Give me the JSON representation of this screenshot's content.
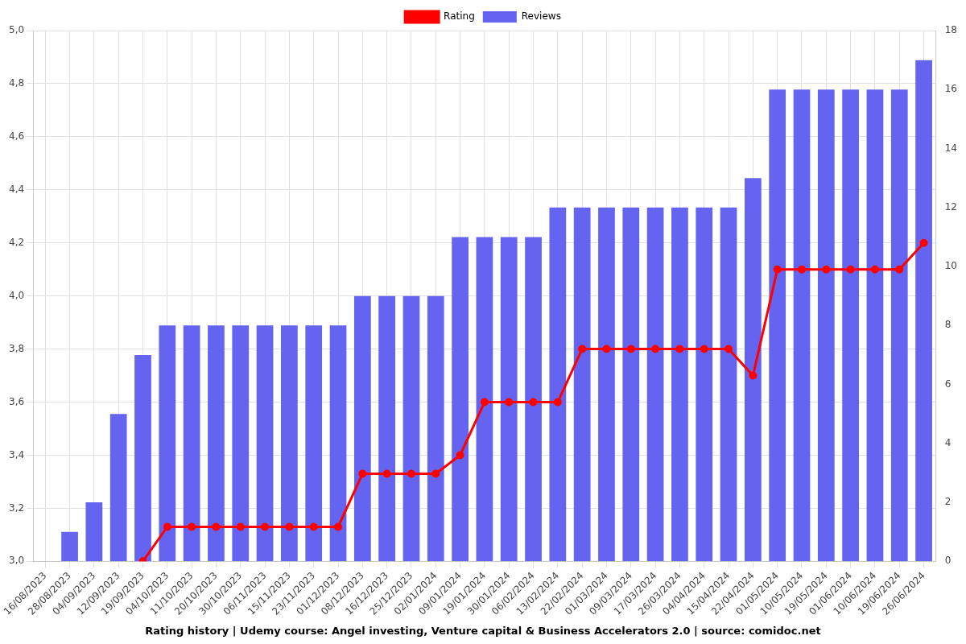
{
  "chart_data": {
    "type": "bar",
    "title": "Rating history | Udemy course: Angel investing, Venture capital & Business Accelerators 2.0 | source: comidoc.net",
    "categories": [
      "16/08/2023",
      "28/08/2023",
      "04/09/2023",
      "12/09/2023",
      "19/09/2023",
      "04/10/2023",
      "11/10/2023",
      "20/10/2023",
      "30/10/2023",
      "06/11/2023",
      "15/11/2023",
      "23/11/2023",
      "01/12/2023",
      "08/12/2023",
      "16/12/2023",
      "25/12/2023",
      "02/01/2024",
      "09/01/2024",
      "19/01/2024",
      "30/01/2024",
      "06/02/2024",
      "13/02/2024",
      "22/02/2024",
      "01/03/2024",
      "09/03/2024",
      "17/03/2024",
      "26/03/2024",
      "04/04/2024",
      "15/04/2024",
      "22/04/2024",
      "01/05/2024",
      "10/05/2024",
      "19/05/2024",
      "01/06/2024",
      "10/06/2024",
      "19/06/2024",
      "26/06/2024"
    ],
    "series": [
      {
        "name": "Rating",
        "type": "line",
        "color": "#ff0000",
        "marker": "circle",
        "values": [
          null,
          null,
          null,
          null,
          3.0,
          3.13,
          3.13,
          3.13,
          3.13,
          3.13,
          3.13,
          3.13,
          3.13,
          3.33,
          3.33,
          3.33,
          3.33,
          3.4,
          3.6,
          3.6,
          3.6,
          3.6,
          3.8,
          3.8,
          3.8,
          3.8,
          3.8,
          3.8,
          3.8,
          3.7,
          4.1,
          4.1,
          4.1,
          4.1,
          4.1,
          4.1,
          4.2
        ]
      },
      {
        "name": "Reviews",
        "type": "bar",
        "color": "#6464f0",
        "axis": "y2",
        "values": [
          null,
          1,
          2,
          5,
          7,
          8,
          8,
          8,
          8,
          8,
          8,
          8,
          8,
          9,
          9,
          9,
          9,
          11,
          11,
          11,
          11,
          12,
          12,
          12,
          12,
          12,
          12,
          12,
          12,
          13,
          16,
          16,
          16,
          16,
          16,
          16,
          17
        ]
      }
    ],
    "ylim": [
      3.0,
      5.0
    ],
    "yticks": [
      {
        "value": 3.0,
        "label": "3,0"
      },
      {
        "value": 3.2,
        "label": "3,2"
      },
      {
        "value": 3.4,
        "label": "3,4"
      },
      {
        "value": 3.6,
        "label": "3,6"
      },
      {
        "value": 3.8,
        "label": "3,8"
      },
      {
        "value": 4.0,
        "label": "4,0"
      },
      {
        "value": 4.2,
        "label": "4,2"
      },
      {
        "value": 4.4,
        "label": "4,4"
      },
      {
        "value": 4.6,
        "label": "4,6"
      },
      {
        "value": 4.8,
        "label": "4,8"
      },
      {
        "value": 5.0,
        "label": "5,0"
      }
    ],
    "y2lim": [
      0,
      18
    ],
    "y2ticks": [
      0,
      2,
      4,
      6,
      8,
      10,
      12,
      14,
      16,
      18
    ],
    "grid": true,
    "legend": "top"
  }
}
